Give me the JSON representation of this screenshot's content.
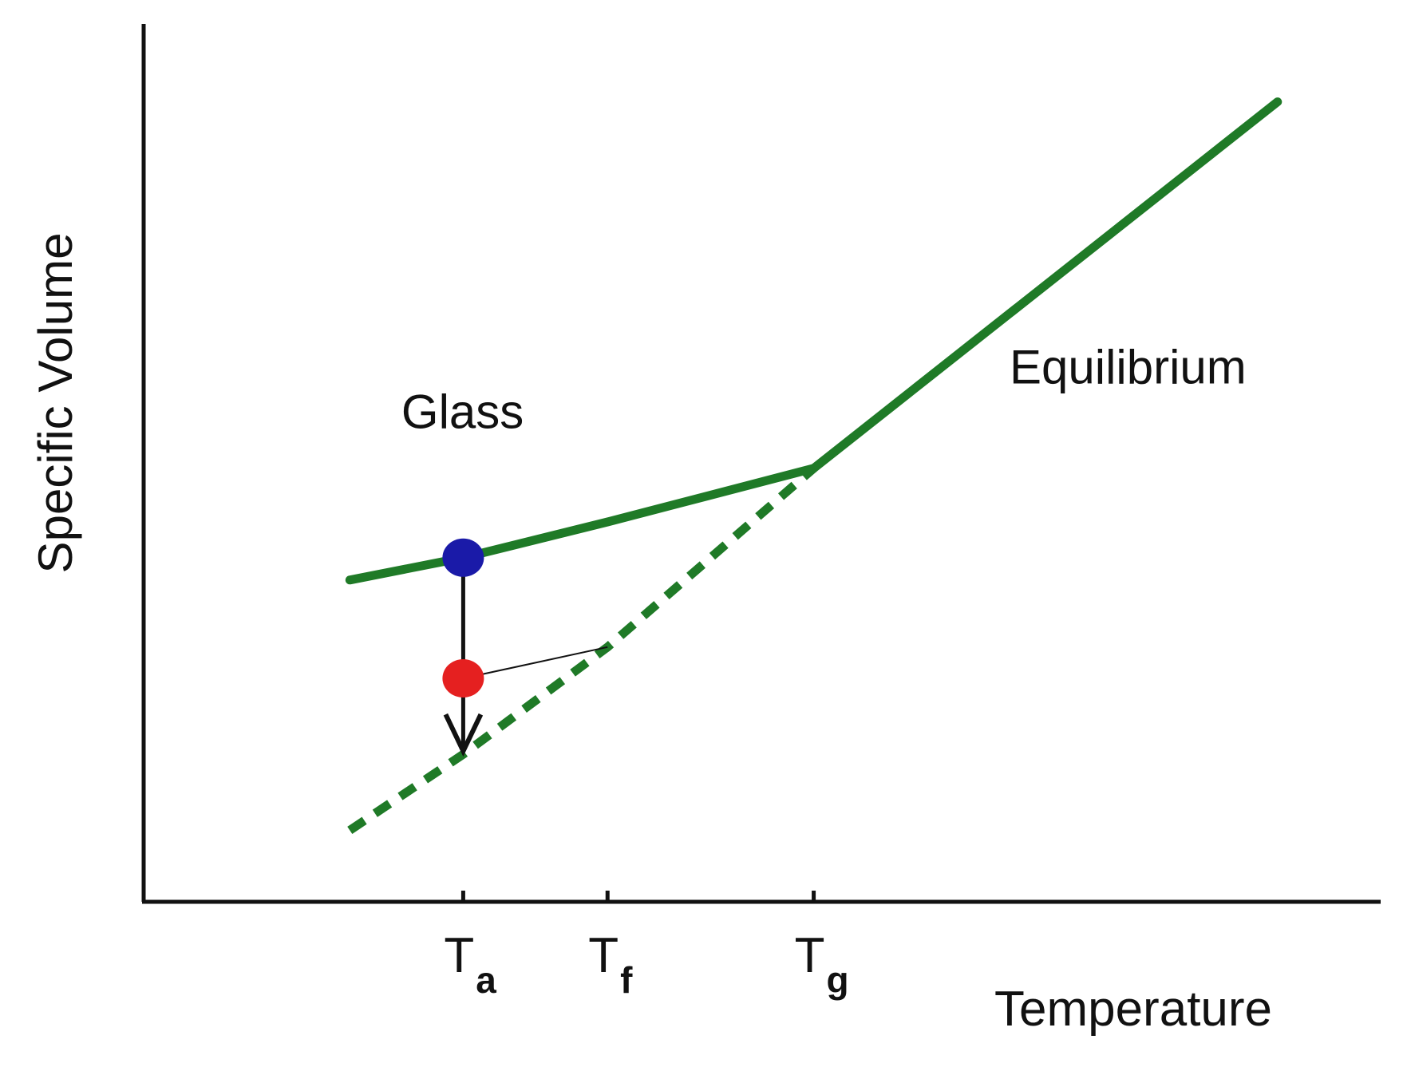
{
  "chart_data": {
    "type": "line",
    "ylabel": "Specific Volume",
    "xlabel": "Temperature",
    "x_ticks": [
      {
        "main": "T",
        "sub": "a",
        "value": 0.31
      },
      {
        "main": "T",
        "sub": "f",
        "value": 0.45
      },
      {
        "main": "T",
        "sub": "g",
        "value": 0.65
      }
    ],
    "xlim": [
      0,
      1.2
    ],
    "ylim": [
      0,
      1
    ],
    "grid": false,
    "annotations": [
      {
        "id": "glass",
        "text": "Glass",
        "x": 0.25,
        "y": 0.53
      },
      {
        "id": "equilibrium",
        "text": "Equilibrium",
        "x": 0.84,
        "y": 0.58
      }
    ],
    "series": [
      {
        "id": "glass-line",
        "style": "solid",
        "points": [
          [
            0.2,
            0.36
          ],
          [
            0.31,
            0.385
          ],
          [
            0.45,
            0.425
          ],
          [
            0.65,
            0.485
          ]
        ]
      },
      {
        "id": "equilibrium-line",
        "style": "solid",
        "points": [
          [
            0.65,
            0.485
          ],
          [
            1.1,
            0.895
          ]
        ]
      },
      {
        "id": "supercooled-extrapolation",
        "style": "dashed",
        "points": [
          [
            0.2,
            0.08
          ],
          [
            0.31,
            0.165
          ],
          [
            0.45,
            0.285
          ],
          [
            0.65,
            0.485
          ]
        ]
      }
    ],
    "markers": [
      {
        "id": "initial-state",
        "x": 0.31,
        "y": 0.385,
        "color": "#1a1aa8"
      },
      {
        "id": "aged-state",
        "x": 0.31,
        "y": 0.25,
        "color": "#e52020"
      }
    ],
    "arrow": {
      "x": 0.31,
      "y_from": 0.385,
      "y_to": 0.165
    },
    "connector": {
      "from": [
        0.31,
        0.25
      ],
      "to": [
        0.45,
        0.285
      ]
    },
    "colors": {
      "curve": "#1f7a27",
      "axis": "#111111",
      "text": "#111111"
    }
  }
}
